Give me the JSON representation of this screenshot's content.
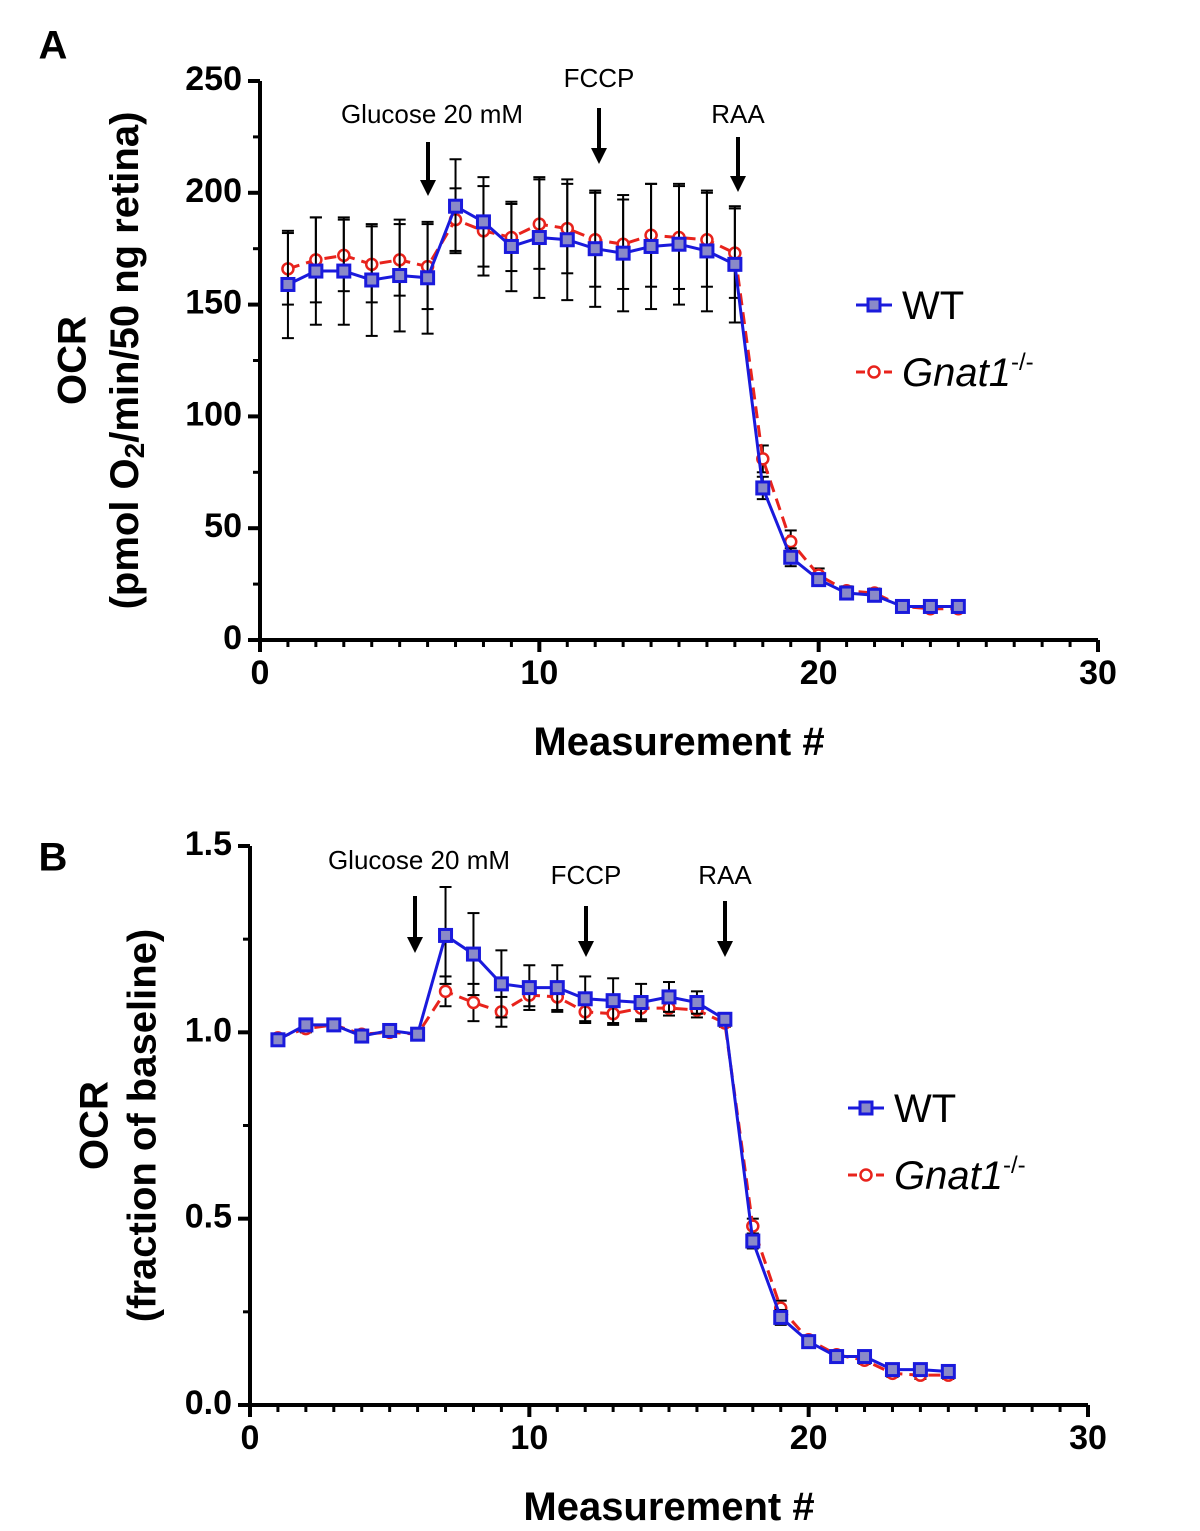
{
  "chart_data": [
    {
      "panel_label": "A",
      "type": "line",
      "xlabel": "Measurement #",
      "ylabel": "OCR",
      "ylabel_sub_parts": [
        "(pmol O",
        "2",
        "/min/50 ng retina)"
      ],
      "xlim": [
        0,
        30
      ],
      "ylim": [
        0,
        250
      ],
      "xticks": [
        0,
        10,
        20,
        30
      ],
      "yticks": [
        0,
        50,
        100,
        150,
        200,
        250
      ],
      "grid": false,
      "legend_position": "right",
      "annotations": [
        {
          "label": "Glucose 20 mM",
          "x": 6
        },
        {
          "label": "FCCP",
          "x": 12
        },
        {
          "label": "RAA",
          "x": 17
        }
      ],
      "series": [
        {
          "name": "WT",
          "color": "#1a1adc",
          "marker": "square",
          "x": [
            1,
            2,
            3,
            4,
            5,
            6,
            7,
            8,
            9,
            10,
            11,
            12,
            13,
            14,
            15,
            16,
            17,
            18,
            19,
            20,
            21,
            22,
            23,
            24,
            25
          ],
          "values": [
            159,
            165,
            165,
            161,
            163,
            162,
            194,
            187,
            176,
            180,
            179,
            175,
            173,
            176,
            177,
            174,
            168,
            68,
            37,
            27,
            21,
            20,
            15,
            15,
            15
          ],
          "error": [
            24,
            24,
            24,
            25,
            25,
            25,
            21,
            20,
            20,
            27,
            27,
            26,
            26,
            28,
            27,
            27,
            26,
            5,
            4,
            2,
            2,
            2,
            1,
            1,
            1
          ]
        },
        {
          "name": "Gnat1",
          "name_superscript": "-/-",
          "color": "#e8231c",
          "marker": "circle",
          "x": [
            1,
            2,
            3,
            4,
            5,
            6,
            7,
            8,
            9,
            10,
            11,
            12,
            13,
            14,
            15,
            16,
            17,
            18,
            19,
            20,
            21,
            22,
            23,
            24,
            25
          ],
          "values": [
            166,
            170,
            172,
            168,
            170,
            167,
            188,
            183,
            180,
            186,
            184,
            179,
            177,
            181,
            180,
            179,
            173,
            81,
            44,
            29,
            22,
            21,
            15,
            14,
            14
          ],
          "error": [
            16,
            19,
            16,
            17,
            16,
            19,
            14,
            20,
            15,
            20,
            20,
            21,
            20,
            23,
            23,
            21,
            20,
            6,
            5,
            3,
            2,
            2,
            1,
            1,
            1
          ]
        }
      ]
    },
    {
      "panel_label": "B",
      "type": "line",
      "xlabel": "Measurement #",
      "ylabel": "OCR",
      "ylabel_sub": "(fraction of baseline)",
      "xlim": [
        0,
        30
      ],
      "ylim": [
        0,
        1.5
      ],
      "xticks": [
        0,
        10,
        20,
        30
      ],
      "yticks": [
        0.0,
        0.5,
        1.0,
        1.5
      ],
      "ytick_labels": [
        "0.0",
        "0.5",
        "1.0",
        "1.5"
      ],
      "grid": false,
      "legend_position": "right",
      "annotations": [
        {
          "label": "Glucose 20 mM",
          "x": 6
        },
        {
          "label": "FCCP",
          "x": 12
        },
        {
          "label": "RAA",
          "x": 17
        }
      ],
      "series": [
        {
          "name": "WT",
          "color": "#1a1adc",
          "marker": "square",
          "x": [
            1,
            2,
            3,
            4,
            5,
            6,
            7,
            8,
            9,
            10,
            11,
            12,
            13,
            14,
            15,
            16,
            17,
            18,
            19,
            20,
            21,
            22,
            23,
            24,
            25
          ],
          "values": [
            0.98,
            1.02,
            1.02,
            0.99,
            1.005,
            0.995,
            1.26,
            1.21,
            1.13,
            1.12,
            1.12,
            1.09,
            1.085,
            1.08,
            1.095,
            1.08,
            1.035,
            0.44,
            0.235,
            0.17,
            0.13,
            0.13,
            0.095,
            0.095,
            0.09
          ],
          "error": [
            0.01,
            0.01,
            0.01,
            0.01,
            0.01,
            0.01,
            0.13,
            0.11,
            0.09,
            0.06,
            0.06,
            0.06,
            0.06,
            0.05,
            0.04,
            0.03,
            0.01,
            0.02,
            0.02,
            0.01,
            0.01,
            0.01,
            0.01,
            0.01,
            0.01
          ]
        },
        {
          "name": "Gnat1",
          "name_superscript": "-/-",
          "color": "#e8231c",
          "marker": "circle",
          "x": [
            1,
            2,
            3,
            4,
            5,
            6,
            7,
            8,
            9,
            10,
            11,
            12,
            13,
            14,
            15,
            16,
            17,
            18,
            19,
            20,
            21,
            22,
            23,
            24,
            25
          ],
          "values": [
            0.985,
            1.01,
            1.02,
            0.995,
            1.0,
            0.995,
            1.11,
            1.08,
            1.055,
            1.1,
            1.095,
            1.055,
            1.05,
            1.065,
            1.065,
            1.06,
            1.025,
            0.48,
            0.26,
            0.175,
            0.135,
            0.12,
            0.085,
            0.08,
            0.08
          ],
          "error": [
            0.01,
            0.01,
            0.01,
            0.01,
            0.01,
            0.01,
            0.04,
            0.05,
            0.04,
            0.03,
            0.04,
            0.03,
            0.03,
            0.03,
            0.02,
            0.02,
            0.01,
            0.02,
            0.02,
            0.01,
            0.01,
            0.01,
            0.01,
            0.01,
            0.01
          ]
        }
      ]
    }
  ]
}
